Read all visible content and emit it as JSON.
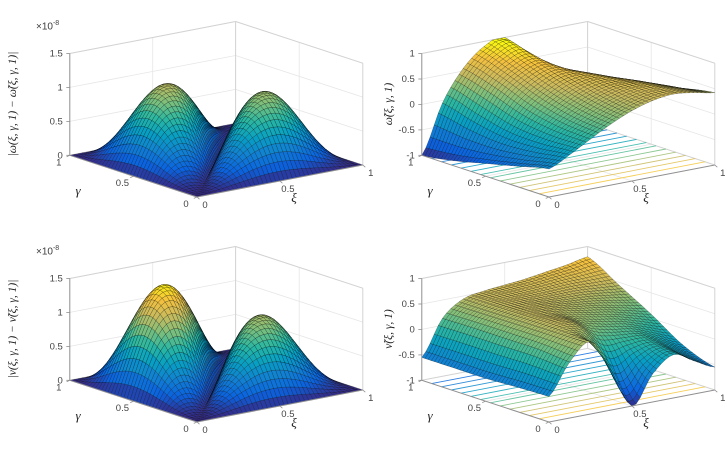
{
  "chart_data": {
    "type": "surface",
    "figure_description": "2x2 grid of MATLAB-style 3D surface plots: absolute errors (x1e-8) of omega and nu on the left, approximate solutions omega-tilde and nu-tilde at t=1 on the right",
    "view": {
      "azimuth": -37.5,
      "elevation": 30
    },
    "colormap": {
      "name": "parula",
      "anchors": [
        [
          0,
          "#352a87"
        ],
        [
          0.125,
          "#0a63e0"
        ],
        [
          0.25,
          "#1181d2"
        ],
        [
          0.375,
          "#07a0c3"
        ],
        [
          0.5,
          "#2cb7a0"
        ],
        [
          0.625,
          "#7fbf7b"
        ],
        [
          0.75,
          "#c9ba5e"
        ],
        [
          0.875,
          "#f5c13e"
        ],
        [
          1,
          "#f9fb0e"
        ]
      ]
    },
    "style": {
      "background": "#ffffff",
      "grid_color": "#e6e6e6",
      "box_edge_color": "#d2d2d2",
      "axis_color": "#8f8f8f",
      "tick_label_color": "#444444",
      "mesh_line_color": "#000000",
      "mesh_cells": 40,
      "contour_line_count": 12
    },
    "subplots": [
      {
        "id": "omega-error",
        "position": "top-left",
        "zlabel": "|ω(ξ, γ, 1) − ω̃(ξ, γ, 1)|",
        "xlabel": "ξ",
        "ylabel": "γ",
        "z_scale": {
          "base": "×10",
          "exp": "-8"
        },
        "xlim": [
          0,
          1
        ],
        "ylim": [
          0,
          1
        ],
        "zlim": [
          0,
          1.5
        ],
        "x_ticks": [
          "0",
          "0.5",
          "1"
        ],
        "y_ticks": [
          "0",
          "0.5",
          "1"
        ],
        "z_ticks": [
          "0",
          "0.5",
          "1",
          "1.5"
        ],
        "floor_contours": false,
        "surface": {
          "expr": "1.62*abs(sin(PI*x)*sin(PI*y)*sin(PI*(x-y)))*(1+0.1*(y-x))",
          "sample_x": [
            0,
            0.25,
            0.5,
            0.75,
            1
          ],
          "sample_y": [
            0,
            0.25,
            0.5,
            0.75,
            1
          ],
          "sample_values": [
            [
              0,
              0,
              0,
              0,
              0
            ],
            [
              0,
              0,
              0.79,
              0.77,
              0
            ],
            [
              0,
              0.83,
              0,
              0.79,
              0
            ],
            [
              0,
              0.85,
              0.83,
              0,
              0
            ],
            [
              0,
              0,
              0,
              0,
              0
            ]
          ]
        }
      },
      {
        "id": "omega-tilde",
        "position": "top-right",
        "zlabel": "ω̃(ξ, γ, 1)",
        "xlabel": "ξ",
        "ylabel": "γ",
        "z_scale": null,
        "xlim": [
          0,
          1
        ],
        "ylim": [
          0,
          1
        ],
        "zlim": [
          -1,
          1
        ],
        "x_ticks": [
          "0",
          "0.5",
          "1"
        ],
        "y_ticks": [
          "0",
          "0.5",
          "1"
        ],
        "z_ticks": [
          "-1",
          "-0.5",
          "0",
          "0.5",
          "1"
        ],
        "floor_contours": true,
        "surface": {
          "grid_x": [
            0,
            0.125,
            0.25,
            0.375,
            0.5,
            0.625,
            0.75,
            0.875,
            1
          ],
          "grid_y": [
            0,
            0.25,
            0.5,
            0.75,
            1
          ],
          "values": [
            [
              -0.45,
              -0.25,
              -0.02,
              0.2,
              0.38,
              0.5,
              0.55,
              0.5,
              0.42
            ],
            [
              -0.6,
              -0.32,
              0.02,
              0.28,
              0.47,
              0.57,
              0.57,
              0.45,
              0.3
            ],
            [
              -0.75,
              -0.33,
              0.15,
              0.45,
              0.62,
              0.62,
              0.48,
              0.3,
              0.12
            ],
            [
              -0.9,
              -0.22,
              0.38,
              0.68,
              0.8,
              0.52,
              0.28,
              0.08,
              -0.08
            ],
            [
              -1.0,
              -0.05,
              0.55,
              0.9,
              1.0,
              0.3,
              0.02,
              -0.12,
              -0.25
            ]
          ]
        }
      },
      {
        "id": "nu-error",
        "position": "bottom-left",
        "zlabel": "|ν(ξ, γ, 1) − ν̃(ξ, γ, 1)|",
        "xlabel": "ξ",
        "ylabel": "γ",
        "z_scale": {
          "base": "×10",
          "exp": "-8"
        },
        "xlim": [
          0,
          1
        ],
        "ylim": [
          0,
          1
        ],
        "zlim": [
          0,
          1.5
        ],
        "x_ticks": [
          "0",
          "0.5",
          "1"
        ],
        "y_ticks": [
          "0",
          "0.5",
          "1"
        ],
        "z_ticks": [
          "0",
          "0.5",
          "1",
          "1.5"
        ],
        "floor_contours": false,
        "surface": {
          "expr": "1.9*abs(sin(PI*x)*sin(PI*y)*sin(PI*(x-y)))*(1+0.5*(y-x))",
          "sample_x": [
            0,
            0.25,
            0.5,
            0.75,
            1
          ],
          "sample_y": [
            0,
            0.25,
            0.5,
            0.75,
            1
          ],
          "sample_values": [
            [
              0,
              0,
              0,
              0,
              0
            ],
            [
              0,
              0,
              0.83,
              0.71,
              0
            ],
            [
              0,
              1.07,
              0,
              0.83,
              0
            ],
            [
              0,
              1.19,
              1.07,
              0,
              0
            ],
            [
              0,
              0,
              0,
              0,
              0
            ]
          ]
        }
      },
      {
        "id": "nu-tilde",
        "position": "bottom-right",
        "zlabel": "ν̃(ξ, γ, 1)",
        "xlabel": "ξ",
        "ylabel": "γ",
        "z_scale": null,
        "xlim": [
          0,
          1
        ],
        "ylim": [
          0,
          1
        ],
        "zlim": [
          -1,
          1
        ],
        "x_ticks": [
          "0",
          "0.5",
          "1"
        ],
        "y_ticks": [
          "0",
          "0.5",
          "1"
        ],
        "z_ticks": [
          "-1",
          "-0.5",
          "0",
          "0.5",
          "1"
        ],
        "floor_contours": true,
        "surface": {
          "grid_x": [
            0,
            0.125,
            0.25,
            0.375,
            0.5,
            0.625,
            0.75,
            0.875,
            1
          ],
          "grid_y": [
            0,
            0.25,
            0.5,
            0.75,
            1
          ],
          "values": [
            [
              -0.5,
              0.1,
              0.42,
              -0.15,
              -1.0,
              -0.45,
              -0.15,
              -0.35,
              -0.55
            ],
            [
              -0.52,
              0.15,
              0.45,
              0.42,
              0.1,
              0.05,
              0.02,
              -0.15,
              -0.32
            ],
            [
              -0.55,
              0.15,
              0.45,
              0.48,
              0.42,
              0.35,
              0.28,
              0.18,
              0.08
            ],
            [
              -0.55,
              0.15,
              0.44,
              0.5,
              0.5,
              0.5,
              0.5,
              0.47,
              0.44
            ],
            [
              -0.55,
              0.14,
              0.44,
              0.52,
              0.56,
              0.6,
              0.66,
              0.72,
              0.8
            ]
          ]
        }
      }
    ]
  }
}
